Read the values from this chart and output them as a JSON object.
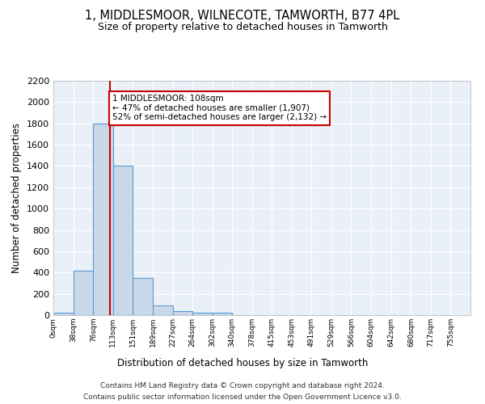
{
  "title": "1, MIDDLESMOOR, WILNECOTE, TAMWORTH, B77 4PL",
  "subtitle": "Size of property relative to detached houses in Tamworth",
  "xlabel": "Distribution of detached houses by size in Tamworth",
  "ylabel": "Number of detached properties",
  "bin_edges": [
    0,
    38,
    76,
    113,
    151,
    189,
    227,
    264,
    302,
    340,
    378,
    415,
    453,
    491,
    529,
    566,
    604,
    642,
    680,
    717,
    755
  ],
  "bar_heights": [
    20,
    420,
    1800,
    1400,
    350,
    90,
    35,
    20,
    20,
    0,
    0,
    0,
    0,
    0,
    0,
    0,
    0,
    0,
    0,
    0
  ],
  "bar_color": "#c8d8e8",
  "bar_edge_color": "#5b9bd5",
  "property_size": 108,
  "red_line_color": "#cc0000",
  "annotation_text": "1 MIDDLESMOOR: 108sqm\n← 47% of detached houses are smaller (1,907)\n52% of semi-detached houses are larger (2,132) →",
  "annotation_box_color": "#ffffff",
  "annotation_box_edge_color": "#cc0000",
  "ylim": [
    0,
    2200
  ],
  "yticks": [
    0,
    200,
    400,
    600,
    800,
    1000,
    1200,
    1400,
    1600,
    1800,
    2000,
    2200
  ],
  "background_color": "#eaf0f8",
  "grid_color": "#ffffff",
  "footer_line1": "Contains HM Land Registry data © Crown copyright and database right 2024.",
  "footer_line2": "Contains public sector information licensed under the Open Government Licence v3.0."
}
